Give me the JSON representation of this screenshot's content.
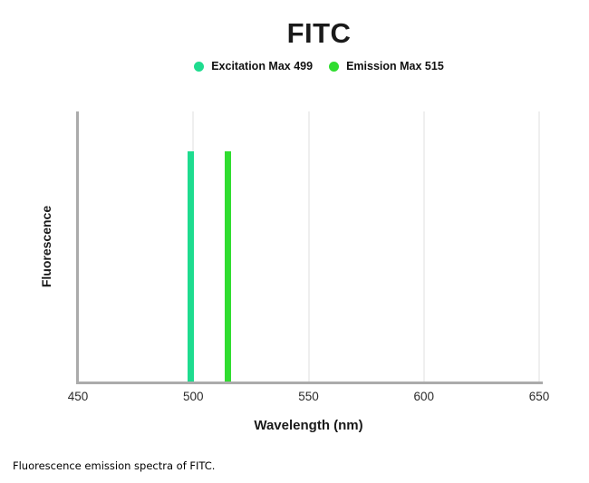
{
  "title": "FITC",
  "legend": {
    "items": [
      {
        "label": "Excitation Max 499",
        "color": "#1EDC8F"
      },
      {
        "label": "Emission Max 515",
        "color": "#30DD30"
      }
    ]
  },
  "chart_data": {
    "type": "bar",
    "title": "FITC",
    "xlabel": "Wavelength (nm)",
    "ylabel": "Fluorescence",
    "xlim": [
      450,
      650
    ],
    "x_ticks": [
      450,
      500,
      550,
      600,
      650
    ],
    "ylim": [
      0,
      100
    ],
    "grid": "vertical-light",
    "legend_position": "top-center",
    "series": [
      {
        "name": "Excitation Max 499",
        "peak_x": 499,
        "value": 100,
        "color": "#1EDC8F"
      },
      {
        "name": "Emission Max 515",
        "peak_x": 515,
        "value": 100,
        "color": "#30DD30"
      }
    ]
  },
  "caption": "Fluorescence emission spectra of FITC.",
  "colors": {
    "axis": "#ABABAB",
    "grid": "#EFEFEF",
    "text": "#1A1A1A"
  }
}
